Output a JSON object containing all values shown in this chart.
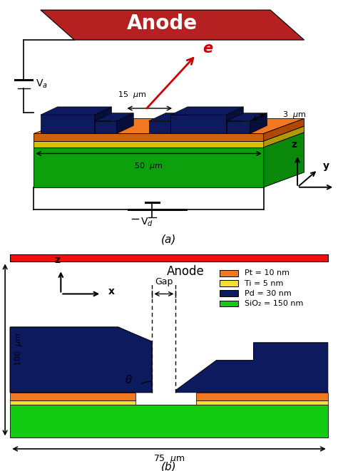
{
  "title_top": "Anode",
  "anode_color": "#b52020",
  "orange_color": "#f07820",
  "yellow_color": "#f5e030",
  "green_color": "#11cc11",
  "darkblue_color": "#0d1b5e",
  "red_color": "#cc0000",
  "bg_color": "#ffffff",
  "label_a": "(a)",
  "label_b": "(b)",
  "legend_pt": "Pt = 10 nm",
  "legend_ti": "Ti = 5 nm",
  "legend_pd": "Pd = 30 nm",
  "legend_sio2": "SiO₂ = 150 nm",
  "gap_label": "Gap",
  "theta_label": "θ",
  "anode_label": "Anode",
  "e_label": "e",
  "electron_arrow_color": "#cc0000"
}
